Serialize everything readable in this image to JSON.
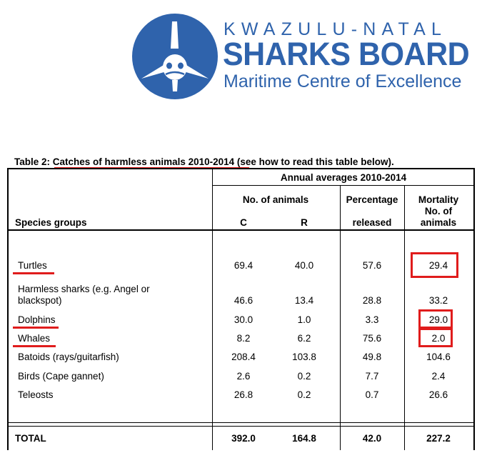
{
  "logo": {
    "line1": "KWAZULU-NATAL",
    "line2": "SHARKS BOARD",
    "line3": "Maritime Centre of Excellence",
    "brand_color": "#2f63ac",
    "icon": "shark-face-icon"
  },
  "caption": {
    "prefix": "Table 2: ",
    "title": "Catches of harmless animals 2010-2014",
    "suffix": " (see how to read this table below)."
  },
  "table": {
    "headers": {
      "annual": "Annual averages 2010-2014",
      "animals": "No. of animals",
      "c": "C",
      "r": "R",
      "pct1": "Percentage",
      "pct2": "released",
      "mort1": "Mortality",
      "mort2": "No. of",
      "mort3": "animals",
      "species": "Species groups"
    },
    "rows": [
      {
        "name": "Turtles",
        "c": "69.4",
        "r": "40.0",
        "pct": "57.6",
        "mort": "29.4"
      },
      {
        "name": "Harmless sharks (e.g. Angel or",
        "name2": "blackspot)",
        "c": "46.6",
        "r": "13.4",
        "pct": "28.8",
        "mort": "33.2"
      },
      {
        "name": "Dolphins",
        "c": "30.0",
        "r": "1.0",
        "pct": "3.3",
        "mort": "29.0"
      },
      {
        "name": "Whales",
        "c": "8.2",
        "r": "6.2",
        "pct": "75.6",
        "mort": "2.0"
      },
      {
        "name": "Batoids (rays/guitarfish)",
        "c": "208.4",
        "r": "103.8",
        "pct": "49.8",
        "mort": "104.6"
      },
      {
        "name": "Birds (Cape gannet)",
        "c": "2.6",
        "r": "0.2",
        "pct": "7.7",
        "mort": "2.4"
      },
      {
        "name": "Teleosts",
        "c": "26.8",
        "r": "0.2",
        "pct": "0.7",
        "mort": "26.6"
      }
    ],
    "total": {
      "name": "TOTAL",
      "c": "392.0",
      "r": "164.8",
      "pct": "42.0",
      "mort": "227.2"
    }
  },
  "highlight_color": "#e01c1c"
}
